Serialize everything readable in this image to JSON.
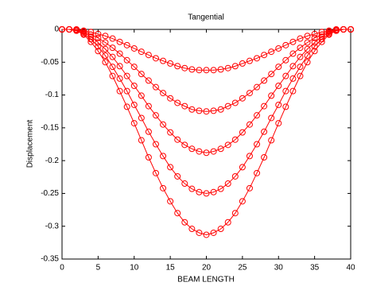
{
  "chart_data": {
    "type": "line",
    "title": "Tangential",
    "xlabel": "BEAM LENGTH",
    "ylabel": "Displacement",
    "x": [
      0,
      1,
      2,
      3,
      4,
      5,
      6,
      7,
      8,
      9,
      10,
      11,
      12,
      13,
      14,
      15,
      16,
      17,
      18,
      19,
      20,
      21,
      22,
      23,
      24,
      25,
      26,
      27,
      28,
      29,
      30,
      31,
      32,
      33,
      34,
      35,
      36,
      37,
      38,
      39,
      40
    ],
    "series": [
      {
        "color": "#ff0000",
        "values": [
          0,
          0,
          0,
          -0.002,
          -0.004,
          -0.007,
          -0.01,
          -0.014,
          -0.019,
          -0.024,
          -0.029,
          -0.034,
          -0.039,
          -0.044,
          -0.048,
          -0.052,
          -0.056,
          -0.059,
          -0.061,
          -0.062,
          -0.062,
          -0.062,
          -0.061,
          -0.059,
          -0.056,
          -0.052,
          -0.048,
          -0.044,
          -0.039,
          -0.034,
          -0.029,
          -0.024,
          -0.019,
          -0.014,
          -0.01,
          -0.007,
          -0.004,
          -0.002,
          0,
          0,
          0
        ]
      },
      {
        "color": "#ff0000",
        "values": [
          0,
          0,
          -0.001,
          -0.003,
          -0.008,
          -0.013,
          -0.02,
          -0.028,
          -0.037,
          -0.047,
          -0.057,
          -0.068,
          -0.078,
          -0.088,
          -0.097,
          -0.105,
          -0.112,
          -0.117,
          -0.122,
          -0.124,
          -0.125,
          -0.124,
          -0.122,
          -0.117,
          -0.112,
          -0.105,
          -0.097,
          -0.088,
          -0.078,
          -0.068,
          -0.057,
          -0.047,
          -0.037,
          -0.028,
          -0.02,
          -0.013,
          -0.008,
          -0.003,
          -0.001,
          0,
          0
        ]
      },
      {
        "color": "#ff0000",
        "values": [
          0,
          0,
          -0.001,
          -0.005,
          -0.011,
          -0.02,
          -0.03,
          -0.042,
          -0.056,
          -0.071,
          -0.086,
          -0.101,
          -0.117,
          -0.131,
          -0.145,
          -0.157,
          -0.168,
          -0.176,
          -0.182,
          -0.186,
          -0.188,
          -0.186,
          -0.182,
          -0.176,
          -0.168,
          -0.157,
          -0.145,
          -0.131,
          -0.117,
          -0.101,
          -0.086,
          -0.071,
          -0.056,
          -0.042,
          -0.03,
          -0.02,
          -0.011,
          -0.005,
          -0.001,
          0,
          0
        ]
      },
      {
        "color": "#ff0000",
        "values": [
          0,
          0,
          -0.002,
          -0.007,
          -0.015,
          -0.026,
          -0.04,
          -0.057,
          -0.075,
          -0.094,
          -0.115,
          -0.135,
          -0.156,
          -0.175,
          -0.193,
          -0.21,
          -0.224,
          -0.235,
          -0.243,
          -0.248,
          -0.25,
          -0.248,
          -0.243,
          -0.235,
          -0.224,
          -0.21,
          -0.193,
          -0.175,
          -0.156,
          -0.135,
          -0.115,
          -0.094,
          -0.075,
          -0.057,
          -0.04,
          -0.026,
          -0.015,
          -0.007,
          -0.002,
          0,
          0
        ]
      },
      {
        "color": "#ff0000",
        "values": [
          0,
          0,
          -0.002,
          -0.008,
          -0.019,
          -0.033,
          -0.05,
          -0.071,
          -0.094,
          -0.118,
          -0.143,
          -0.169,
          -0.195,
          -0.219,
          -0.242,
          -0.262,
          -0.28,
          -0.294,
          -0.304,
          -0.31,
          -0.313,
          -0.31,
          -0.304,
          -0.294,
          -0.28,
          -0.262,
          -0.242,
          -0.219,
          -0.195,
          -0.169,
          -0.143,
          -0.118,
          -0.094,
          -0.071,
          -0.05,
          -0.033,
          -0.019,
          -0.008,
          -0.002,
          0,
          0
        ]
      }
    ],
    "xlim": [
      0,
      40
    ],
    "xticks": [
      0,
      5,
      10,
      15,
      20,
      25,
      30,
      35,
      40
    ],
    "ylim": [
      -0.35,
      0
    ],
    "yticks": [
      0,
      -0.05,
      -0.1,
      -0.15,
      -0.2,
      -0.25,
      -0.3,
      -0.35
    ],
    "grid": false
  }
}
